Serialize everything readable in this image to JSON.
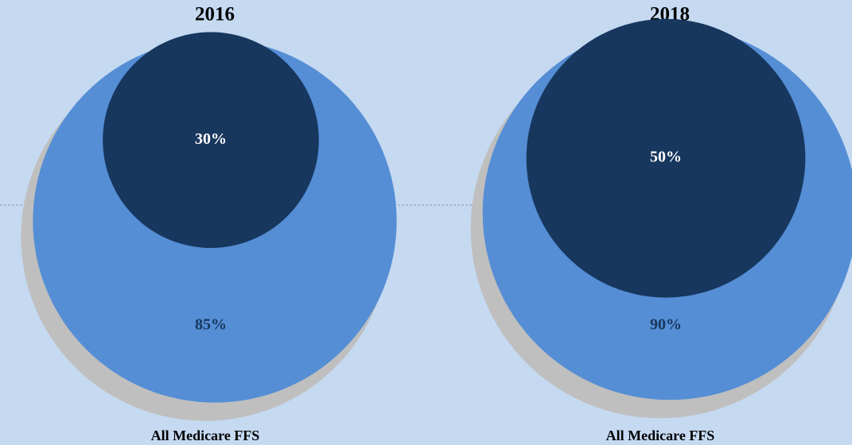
{
  "chart_data": [
    {
      "type": "nested-circles",
      "title": "2016",
      "label": "All Medicare FFS",
      "values": [
        85,
        30
      ],
      "value_labels": [
        "85%",
        "30%"
      ],
      "colors": [
        "#558ed5",
        "#17375e"
      ]
    },
    {
      "type": "nested-circles",
      "title": "2018",
      "label": "All Medicare FFS",
      "values": [
        90,
        50
      ],
      "value_labels": [
        "90%",
        "50%"
      ],
      "colors": [
        "#558ed5",
        "#17375e"
      ]
    }
  ]
}
